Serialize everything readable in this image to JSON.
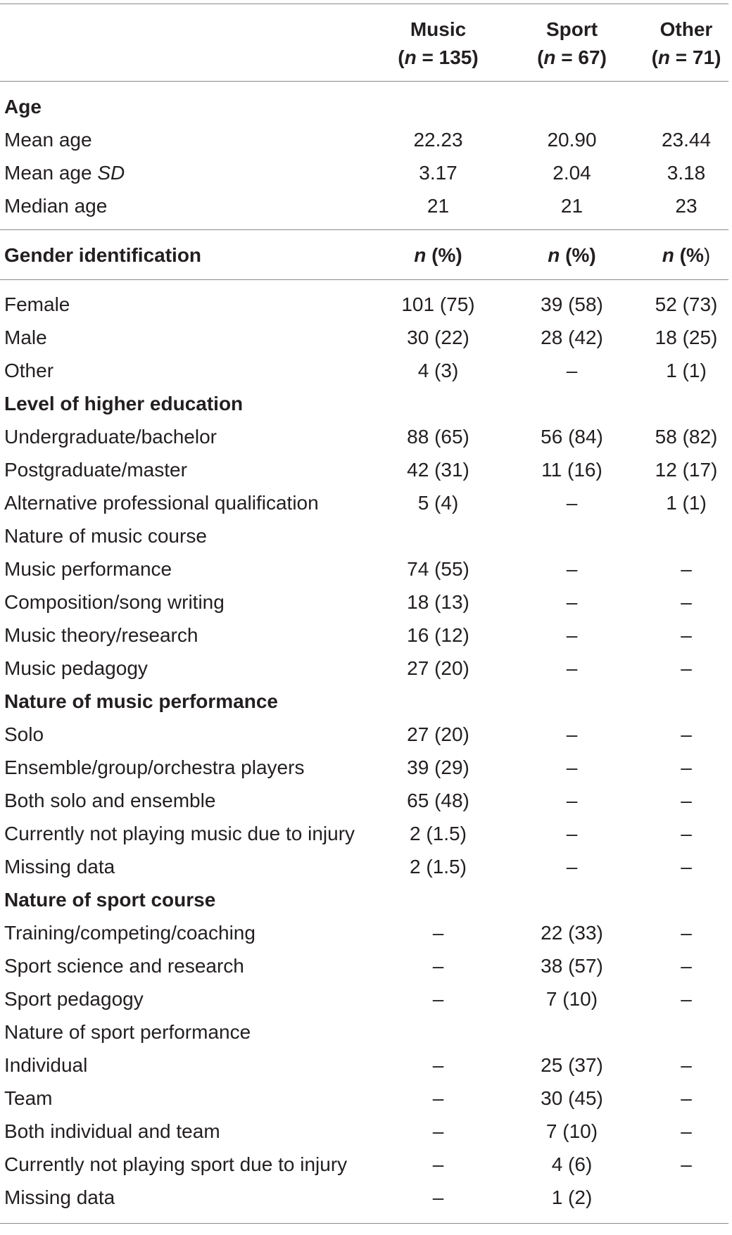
{
  "header": {
    "music": {
      "title": "Music",
      "n_prefix": "(",
      "n_var": "n",
      "n_suffix": " = 135)"
    },
    "sport": {
      "title": "Sport",
      "n_prefix": "(",
      "n_var": "n",
      "n_suffix": " = 67)"
    },
    "other": {
      "title": "Other",
      "n_prefix": "(",
      "n_var": "n",
      "n_suffix": " = 71)"
    }
  },
  "age": {
    "heading": "Age",
    "rows": [
      {
        "label": "Mean age",
        "music": "22.23",
        "sport": "20.90",
        "other": "23.44"
      },
      {
        "label_prefix": "Mean age ",
        "label_italic": "SD",
        "music": "3.17",
        "sport": "2.04",
        "other": "3.18"
      },
      {
        "label": "Median age",
        "music": "21",
        "sport": "21",
        "other": "23"
      }
    ]
  },
  "gender": {
    "heading": "Gender identification",
    "col_var": "n",
    "col_suffix": " (%)",
    "col_suffix_other": " (%",
    "col_close_other": ")",
    "rows": [
      {
        "label": "Female",
        "music": "101 (75)",
        "sport": "39 (58)",
        "other": "52 (73)"
      },
      {
        "label": "Male",
        "music": "30 (22)",
        "sport": "28 (42)",
        "other": "18 (25)"
      },
      {
        "label": "Other",
        "music": "4 (3)",
        "sport": "–",
        "other": "1 (1)"
      }
    ]
  },
  "education": {
    "heading": "Level of higher education",
    "rows": [
      {
        "label": "Undergraduate/bachelor",
        "music": "88 (65)",
        "sport": "56 (84)",
        "other": "58 (82)"
      },
      {
        "label": "Postgraduate/master",
        "music": "42 (31)",
        "sport": "11 (16)",
        "other": "12 (17)"
      },
      {
        "label": "Alternative professional qualification",
        "music": "5 (4)",
        "sport": "–",
        "other": "1 (1)"
      }
    ]
  },
  "music_course": {
    "heading": "Nature of music course",
    "rows": [
      {
        "label": "Music performance",
        "music": "74 (55)",
        "sport": "–",
        "other": "–"
      },
      {
        "label": "Composition/song writing",
        "music": "18 (13)",
        "sport": "–",
        "other": "–"
      },
      {
        "label": "Music theory/research",
        "music": "16 (12)",
        "sport": "–",
        "other": "–"
      },
      {
        "label": "Music pedagogy",
        "music": "27 (20)",
        "sport": "–",
        "other": "–"
      }
    ]
  },
  "music_performance": {
    "heading": "Nature of music performance",
    "rows": [
      {
        "label": "Solo",
        "music": "27 (20)",
        "sport": "–",
        "other": "–"
      },
      {
        "label": "Ensemble/group/orchestra players",
        "music": "39 (29)",
        "sport": "–",
        "other": "–"
      },
      {
        "label": "Both solo and ensemble",
        "music": "65 (48)",
        "sport": "–",
        "other": "–"
      },
      {
        "label": "Currently not playing music due to injury",
        "music": "2 (1.5)",
        "sport": "–",
        "other": "–"
      },
      {
        "label": "Missing data",
        "music": "2 (1.5)",
        "sport": "–",
        "other": "–"
      }
    ]
  },
  "sport_course": {
    "heading": "Nature of sport course",
    "rows": [
      {
        "label": "Training/competing/coaching",
        "music": "–",
        "sport": "22 (33)",
        "other": "–"
      },
      {
        "label": "Sport science and research",
        "music": "–",
        "sport": "38 (57)",
        "other": "–"
      },
      {
        "label": "Sport pedagogy",
        "music": "–",
        "sport": "7 (10)",
        "other": "–"
      }
    ]
  },
  "sport_performance": {
    "heading": "Nature of sport performance",
    "rows": [
      {
        "label": "Individual",
        "music": "–",
        "sport": "25 (37)",
        "other": "–"
      },
      {
        "label": "Team",
        "music": "–",
        "sport": "30 (45)",
        "other": "–"
      },
      {
        "label": "Both individual and team",
        "music": "–",
        "sport": "7 (10)",
        "other": "–"
      },
      {
        "label": "Currently not playing sport due to injury",
        "music": "–",
        "sport": "4 (6)",
        "other": "–"
      },
      {
        "label": "Missing data",
        "music": "–",
        "sport": "1 (2)",
        "other": ""
      }
    ]
  }
}
